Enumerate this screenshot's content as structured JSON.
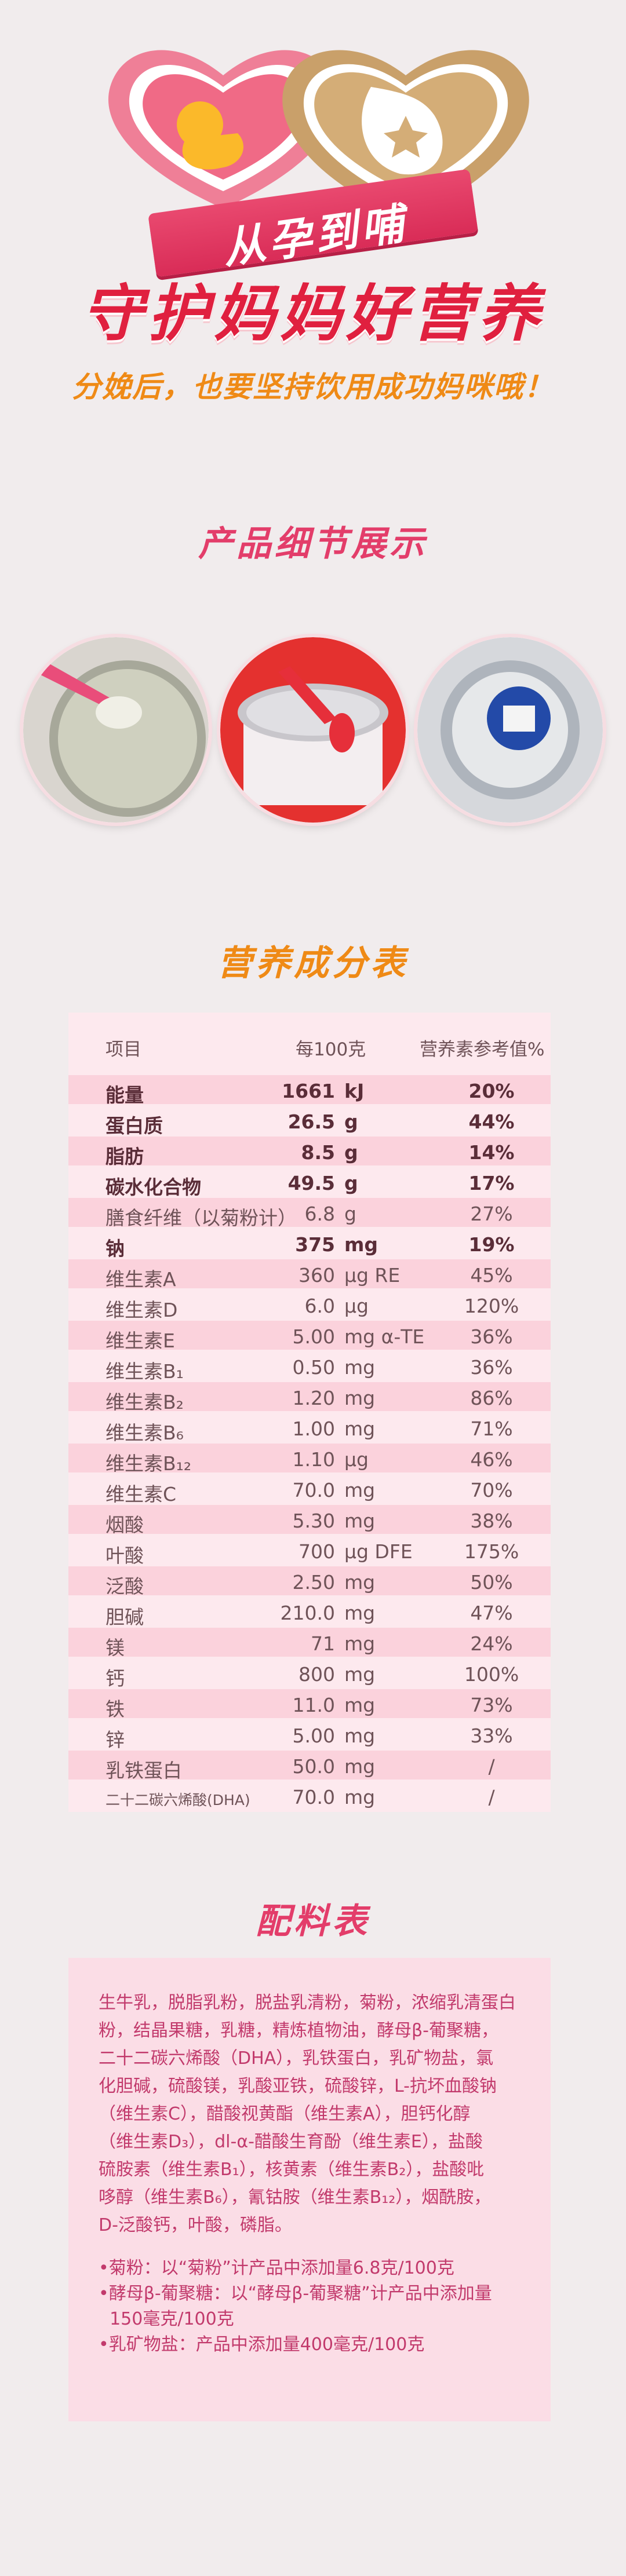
{
  "hero": {
    "ribbon_text": "从孕到哺",
    "headline": "守护妈妈好营养",
    "subline": "分娩后，也要坚持饮用成功妈咪哦！"
  },
  "detail": {
    "title": "产品细节展示",
    "images": [
      "milk-powder-in-can",
      "red-scoop-in-can",
      "can-bottom-label"
    ]
  },
  "nutrition": {
    "title": "营养成分表",
    "header": {
      "item": "项目",
      "per100": "每100克",
      "nrv": "营养素参考值%"
    },
    "rows": [
      {
        "name": "能量",
        "value": "1661",
        "unit": "kJ",
        "nrv": "20%",
        "bold": true,
        "alt": true
      },
      {
        "name": "蛋白质",
        "value": "26.5",
        "unit": "g",
        "nrv": "44%",
        "bold": true,
        "alt": false
      },
      {
        "name": "脂肪",
        "value": "8.5",
        "unit": "g",
        "nrv": "14%",
        "bold": true,
        "alt": true
      },
      {
        "name": "碳水化合物",
        "value": "49.5",
        "unit": "g",
        "nrv": "17%",
        "bold": true,
        "alt": false
      },
      {
        "name": "膳食纤维（以菊粉计）",
        "value": "6.8",
        "unit": "g",
        "nrv": "27%",
        "bold": false,
        "alt": true
      },
      {
        "name": "钠",
        "value": "375",
        "unit": "mg",
        "nrv": "19%",
        "bold": true,
        "alt": false
      },
      {
        "name": "维生素A",
        "value": "360",
        "unit": "μg RE",
        "nrv": "45%",
        "bold": false,
        "alt": true
      },
      {
        "name": "维生素D",
        "value": "6.0",
        "unit": "μg",
        "nrv": "120%",
        "bold": false,
        "alt": false
      },
      {
        "name": "维生素E",
        "value": "5.00",
        "unit": "mg α-TE",
        "nrv": "36%",
        "bold": false,
        "alt": true
      },
      {
        "name": "维生素B₁",
        "value": "0.50",
        "unit": "mg",
        "nrv": "36%",
        "bold": false,
        "alt": false
      },
      {
        "name": "维生素B₂",
        "value": "1.20",
        "unit": "mg",
        "nrv": "86%",
        "bold": false,
        "alt": true
      },
      {
        "name": "维生素B₆",
        "value": "1.00",
        "unit": "mg",
        "nrv": "71%",
        "bold": false,
        "alt": false
      },
      {
        "name": "维生素B₁₂",
        "value": "1.10",
        "unit": "μg",
        "nrv": "46%",
        "bold": false,
        "alt": true
      },
      {
        "name": "维生素C",
        "value": "70.0",
        "unit": "mg",
        "nrv": "70%",
        "bold": false,
        "alt": false
      },
      {
        "name": "烟酸",
        "value": "5.30",
        "unit": "mg",
        "nrv": "38%",
        "bold": false,
        "alt": true
      },
      {
        "name": "叶酸",
        "value": "700",
        "unit": "μg DFE",
        "nrv": "175%",
        "bold": false,
        "alt": false
      },
      {
        "name": "泛酸",
        "value": "2.50",
        "unit": "mg",
        "nrv": "50%",
        "bold": false,
        "alt": true
      },
      {
        "name": "胆碱",
        "value": "210.0",
        "unit": "mg",
        "nrv": "47%",
        "bold": false,
        "alt": false
      },
      {
        "name": "镁",
        "value": "71",
        "unit": "mg",
        "nrv": "24%",
        "bold": false,
        "alt": true
      },
      {
        "name": "钙",
        "value": "800",
        "unit": "mg",
        "nrv": "100%",
        "bold": false,
        "alt": false
      },
      {
        "name": "铁",
        "value": "11.0",
        "unit": "mg",
        "nrv": "73%",
        "bold": false,
        "alt": true
      },
      {
        "name": "锌",
        "value": "5.00",
        "unit": "mg",
        "nrv": "33%",
        "bold": false,
        "alt": false
      },
      {
        "name": "乳铁蛋白",
        "value": "50.0",
        "unit": "mg",
        "nrv": "/",
        "bold": false,
        "alt": true
      },
      {
        "name": "二十二碳六烯酸(DHA)",
        "value": "70.0",
        "unit": "mg",
        "nrv": "/",
        "bold": false,
        "alt": false,
        "small": true
      }
    ]
  },
  "ingredients": {
    "title": "配料表",
    "lines": [
      "生牛乳，脱脂乳粉，脱盐乳清粉，菊粉，浓缩乳清蛋白",
      "粉，结晶果糖，乳糖，精炼植物油，酵母β-葡聚糖，",
      "二十二碳六烯酸（DHA），乳铁蛋白，乳矿物盐，氯",
      "化胆碱，硫酸镁，乳酸亚铁，硫酸锌，L-抗坏血酸钠",
      "（维生素C），醋酸视黄酯（维生素A），胆钙化醇",
      "（维生素D₃），dl-α-醋酸生育酚（维生素E），盐酸",
      "硫胺素（维生素B₁），核黄素（维生素B₂），盐酸吡",
      "哆醇（维生素B₆），氰钴胺（维生素B₁₂），烟酰胺，",
      "D-泛酸钙，叶酸，磷脂。"
    ],
    "notes": [
      "•菊粉：以“菊粉”计产品中添加量6.8克/100克",
      "•酵母β-葡聚糖：以“酵母β-葡聚糖”计产品中添加量",
      "  150毫克/100克",
      "•乳矿物盐：产品中添加量400毫克/100克"
    ]
  },
  "colors": {
    "background": "#f1eced",
    "title_orange": "#ef8a16",
    "title_red": "#e0203f",
    "table_pink": "#fde9ee",
    "table_alt": "#fbd2dc",
    "ingredient_text": "#c23a6c"
  }
}
